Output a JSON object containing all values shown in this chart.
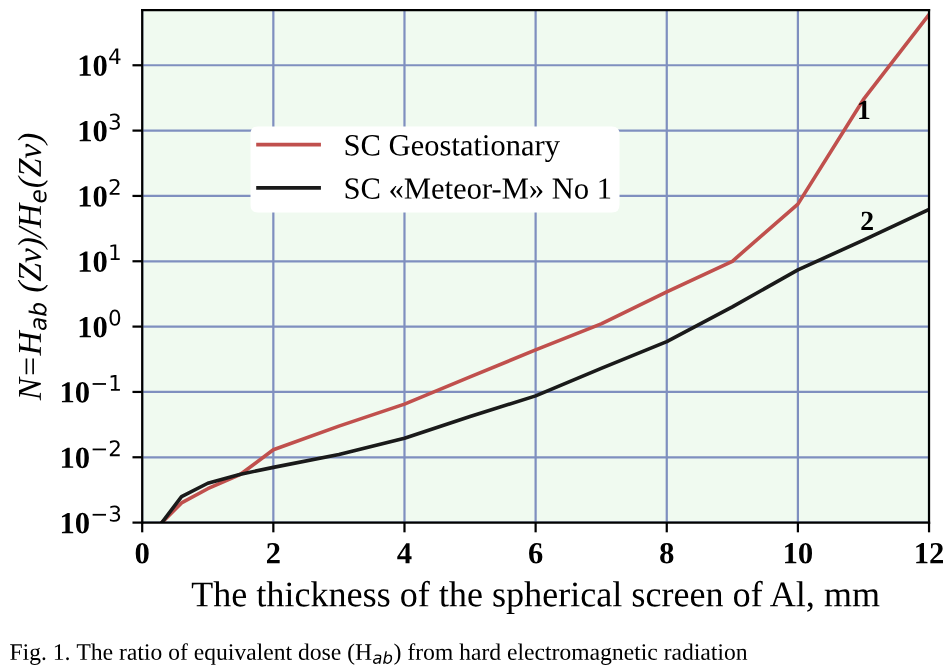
{
  "chart_data": {
    "type": "line",
    "xlabel": "The thickness of the spherical screen of Al, mm",
    "ylabel": "N=H$_{ab}$ (Zv)/H$_{e}$(Zv)",
    "x": [
      0.3,
      0.6,
      1,
      1.5,
      2,
      3,
      4,
      5,
      6,
      7,
      8,
      9,
      10,
      11,
      12
    ],
    "series": [
      {
        "name": "SC Geostationary",
        "color": "#c0504d",
        "values": [
          0.001,
          0.002,
          0.0033,
          0.0055,
          0.013,
          0.03,
          0.065,
          0.17,
          0.44,
          1.1,
          3.4,
          10,
          75,
          3000,
          60000
        ]
      },
      {
        "name": "SC «Meteor-M» No 1",
        "color": "#1a1a1a",
        "values": [
          0.001,
          0.0025,
          0.004,
          0.0055,
          0.007,
          0.011,
          0.0195,
          0.042,
          0.087,
          0.23,
          0.59,
          2,
          7.4,
          21,
          62
        ]
      }
    ],
    "log": "y",
    "xlim": [
      0,
      12
    ],
    "ylim": [
      0.001,
      70000
    ],
    "xticks": [
      0,
      2,
      4,
      6,
      8,
      10,
      12
    ],
    "yticks": [
      {
        "value": 0.001,
        "label": "10$^{−3}$"
      },
      {
        "value": 0.01,
        "label": "10$^{−2}$"
      },
      {
        "value": 0.1,
        "label": "10$^{−1}$"
      },
      {
        "value": 1,
        "label": "10$^{0}$"
      },
      {
        "value": 10,
        "label": "10$^{1}$"
      },
      {
        "value": 100,
        "label": "10$^{2}$"
      },
      {
        "value": 1000,
        "label": "10$^{3}$"
      },
      {
        "value": 10000,
        "label": "10$^{4}$"
      }
    ],
    "grid": true,
    "legend": "top left",
    "marker": "none",
    "line_style": "solid",
    "annotations": [
      {
        "text": "1",
        "x": 10.9,
        "y": 1500
      },
      {
        "text": "2",
        "x": 10.95,
        "y": 30
      },
      "Fig. 1. The ratio of equivalent dose (H$_{ab}$) from hard electromagnetic radiation"
    ]
  }
}
